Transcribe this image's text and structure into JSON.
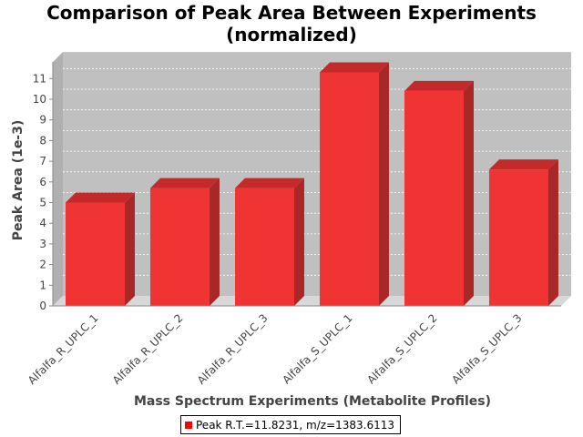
{
  "chart_data": {
    "type": "bar",
    "title_line1": "Comparison of Peak Area Between Experiments",
    "title_line2": "(normalized)",
    "xlabel": "Mass Spectrum Experiments (Metabolite Profiles)",
    "ylabel": "Peak Area (1e-3)",
    "categories": [
      "Alfalfa_R_UPLC_1",
      "Alfalfa_R_UPLC_2",
      "Alfalfa_R_UPLC_3",
      "Alfalfa_S_UPLC_1",
      "Alfalfa_S_UPLC_2",
      "Alfalfa_S_UPLC_3"
    ],
    "series": [
      {
        "name": "Peak R.T.=11.8231, m/z=1383.6113",
        "values": [
          5.0,
          5.7,
          5.7,
          11.3,
          10.4,
          6.6
        ]
      }
    ],
    "ylim": [
      0,
      11.8
    ],
    "yticks": [
      "0",
      "1",
      "2",
      "3",
      "4",
      "5",
      "6",
      "7",
      "8",
      "9",
      "10",
      "11"
    ],
    "grid": true,
    "legend_position": "bottom",
    "colors": {
      "bar_front": "#f03333",
      "bar_top": "#c42a2a",
      "bar_side": "#a82828",
      "plot_bg": "#c0c0c0",
      "floor": "#d8d8d8"
    }
  }
}
